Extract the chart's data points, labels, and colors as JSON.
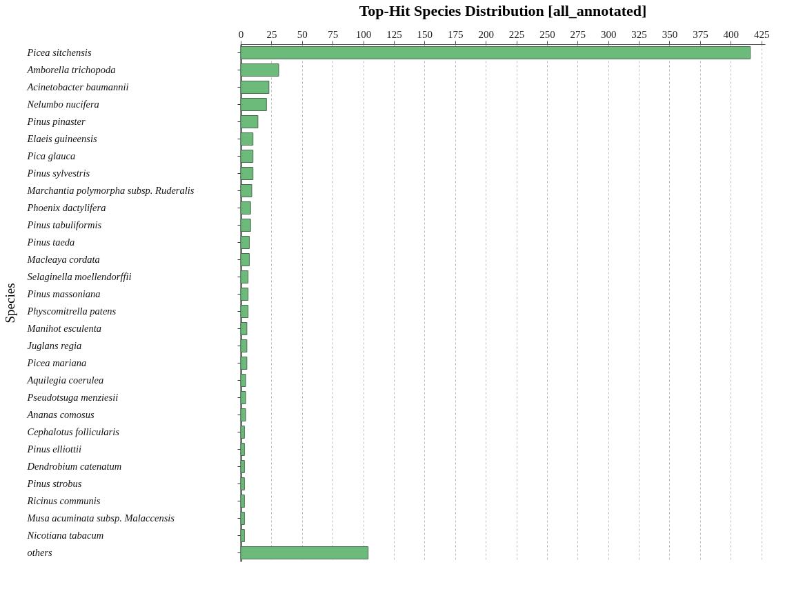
{
  "chart_data": {
    "type": "bar",
    "orientation": "horizontal",
    "title": "Top-Hit Species Distribution [all_annotated]",
    "ylabel": "Species",
    "categories": [
      "Picea sitchensis",
      "Amborella trichopoda",
      "Acinetobacter baumannii",
      "Nelumbo nucifera",
      "Pinus pinaster",
      "Elaeis guineensis",
      "Pica glauca",
      "Pinus sylvestris",
      "Marchantia polymorpha subsp. Ruderalis",
      "Phoenix dactylifera",
      "Pinus tabuliformis",
      "Pinus taeda",
      "Macleaya cordata",
      "Selaginella moellendorffii",
      "Pinus massoniana",
      "Physcomitrella patens",
      "Manihot esculenta",
      "Juglans regia",
      "Picea mariana",
      "Aquilegia coerulea",
      "Pseudotsuga menziesii",
      "Ananas comosus",
      "Cephalotus follicularis",
      "Pinus elliottii",
      "Dendrobium catenatum",
      "Pinus strobus",
      "Ricinus communis",
      "Musa acuminata subsp. Malaccensis",
      "Nicotiana tabacum",
      "others"
    ],
    "values": [
      416,
      31,
      23,
      21,
      14,
      10,
      10,
      10,
      9,
      8,
      8,
      7,
      7,
      6,
      6,
      6,
      5,
      5,
      5,
      4,
      4,
      4,
      3,
      3,
      3,
      3,
      3,
      3,
      3,
      104
    ],
    "color": "#6dbb7b",
    "xlim": [
      0,
      428
    ],
    "xticks": [
      0,
      25,
      50,
      75,
      100,
      125,
      150,
      175,
      200,
      225,
      250,
      275,
      300,
      325,
      350,
      375,
      400,
      425
    ],
    "grid": "x"
  }
}
